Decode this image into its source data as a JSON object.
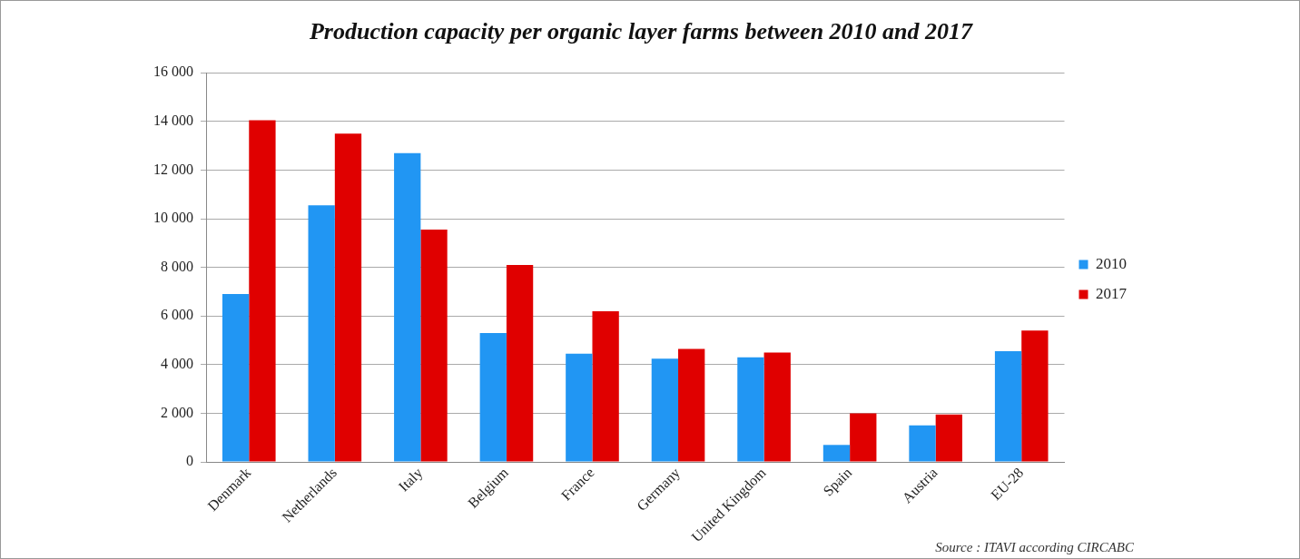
{
  "chart_data": {
    "type": "bar",
    "title": "Production capacity per organic layer farms between 2010 and 2017",
    "categories": [
      "Denmark",
      "Netherlands",
      "Italy",
      "Belgium",
      "France",
      "Germany",
      "United Kingdom",
      "Spain",
      "Austria",
      "EU-28"
    ],
    "series": [
      {
        "name": "2010",
        "color": "#2196f3",
        "values": [
          6900,
          10550,
          12700,
          5300,
          4450,
          4250,
          4300,
          700,
          1500,
          4550
        ]
      },
      {
        "name": "2017",
        "color": "#e00000",
        "values": [
          14050,
          13500,
          9550,
          8100,
          6200,
          4650,
          4500,
          2000,
          1950,
          5400
        ]
      }
    ],
    "ylim": [
      0,
      16000
    ],
    "yticks": [
      {
        "value": 0,
        "label": "0"
      },
      {
        "value": 2000,
        "label": "2 000"
      },
      {
        "value": 4000,
        "label": "4 000"
      },
      {
        "value": 6000,
        "label": "6 000"
      },
      {
        "value": 8000,
        "label": "8 000"
      },
      {
        "value": 10000,
        "label": "10 000"
      },
      {
        "value": 12000,
        "label": "12 000"
      },
      {
        "value": 14000,
        "label": "14 000"
      },
      {
        "value": 16000,
        "label": "16 000"
      }
    ],
    "grid": "y",
    "legend": "right",
    "annotations": [
      "Source : ITAVI according CIRCABC"
    ]
  }
}
